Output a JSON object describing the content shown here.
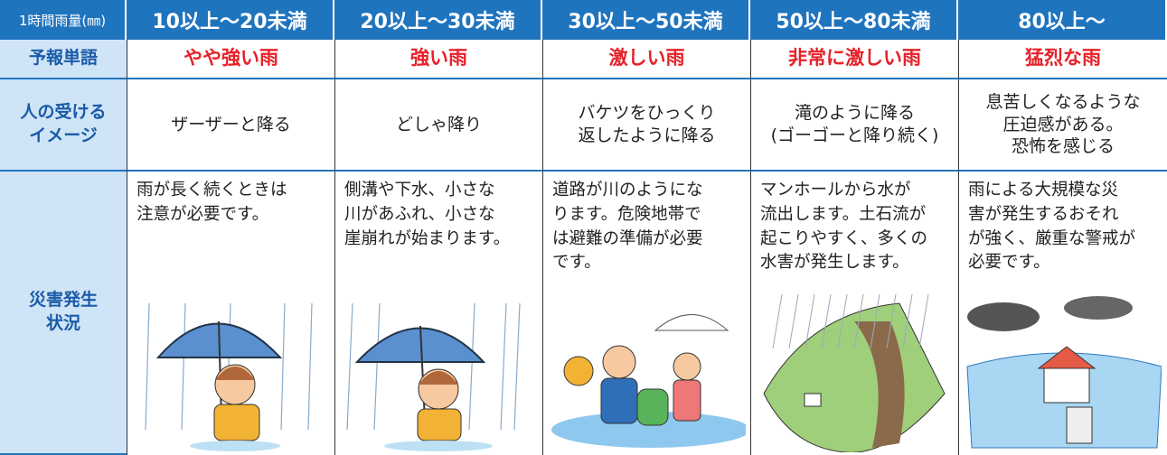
{
  "table": {
    "header": [
      "1時間雨量(㎜)",
      "10以上～20未満",
      "20以上～30未満",
      "30以上～50未満",
      "50以上～80未満",
      "80以上～"
    ],
    "rows": [
      {
        "label": [
          "予報単語"
        ],
        "cells": [
          [
            "やや強い雨"
          ],
          [
            "強い雨"
          ],
          [
            "激しい雨"
          ],
          [
            "非常に激しい雨"
          ],
          [
            "猛烈な雨"
          ]
        ]
      },
      {
        "label": [
          "人の受ける",
          "イメージ"
        ],
        "cells": [
          [
            "ザーザーと降る"
          ],
          [
            "どしゃ降り"
          ],
          [
            "バケツをひっくり",
            "返したように降る"
          ],
          [
            "滝のように降る",
            "(ゴーゴーと降り続く)"
          ],
          [
            "息苦しくなるような",
            "圧迫感がある。",
            "恐怖を感じる"
          ]
        ]
      },
      {
        "label": [
          "災害発生",
          "状況"
        ],
        "cells": [
          [
            "雨が長く続くときは",
            "注意が必要です。"
          ],
          [
            "側溝や下水、小さな",
            "川があふれ、小さな",
            "崖崩れが始まります。"
          ],
          [
            "道路が川のようにな",
            "ります。危険地帯で",
            "は避難の準備が必要",
            "です。"
          ],
          [
            "マンホールから水が",
            "流出します。土石流が",
            "起こりやすく、多くの",
            "水害が発生します。"
          ],
          [
            "雨による大規模な災",
            "害が発生するおそれ",
            "が強く、厳重な警戒が",
            "必要です。"
          ]
        ]
      }
    ]
  }
}
